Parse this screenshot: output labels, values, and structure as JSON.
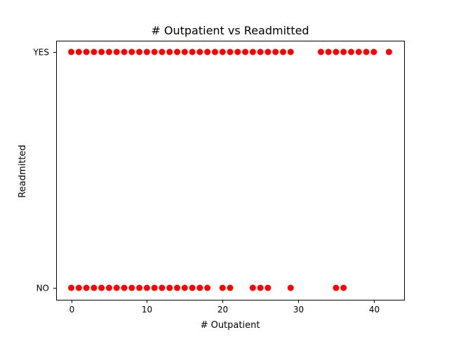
{
  "chart_data": {
    "type": "scatter",
    "title": "# Outpatient vs Readmitted",
    "xlabel": "# Outpatient",
    "ylabel": "Readmitted",
    "xlim": [
      -2,
      44
    ],
    "xticks": [
      0,
      10,
      20,
      30,
      40
    ],
    "categories_y": [
      "NO",
      "YES"
    ],
    "grid": false,
    "legend": "none",
    "marker_color": "#ff0000",
    "series": [
      {
        "category": "YES",
        "x": [
          0,
          1,
          2,
          3,
          4,
          5,
          6,
          7,
          8,
          9,
          10,
          11,
          12,
          13,
          14,
          15,
          16,
          17,
          18,
          19,
          20,
          21,
          22,
          23,
          24,
          25,
          26,
          27,
          28,
          29,
          33,
          34,
          35,
          36,
          37,
          38,
          39,
          40,
          42
        ]
      },
      {
        "category": "NO",
        "x": [
          0,
          1,
          2,
          3,
          4,
          5,
          6,
          7,
          8,
          9,
          10,
          11,
          12,
          13,
          14,
          15,
          16,
          17,
          18,
          20,
          21,
          24,
          25,
          26,
          29,
          35,
          36
        ]
      }
    ]
  }
}
